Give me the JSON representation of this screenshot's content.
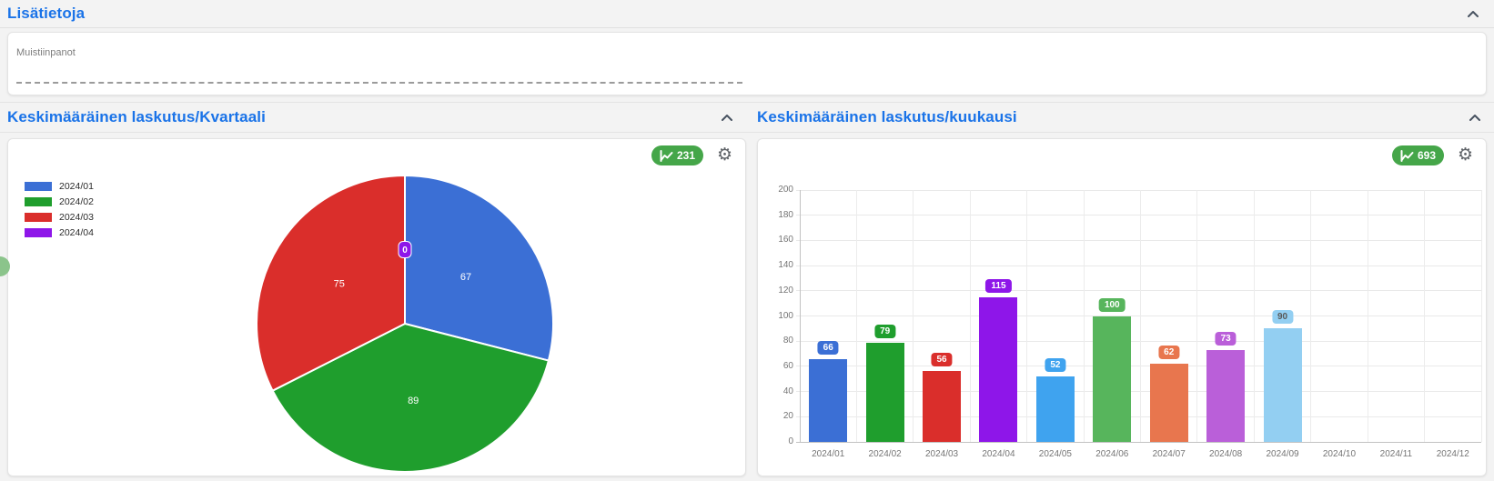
{
  "header": {
    "title": "Lisätietoja"
  },
  "notes": {
    "label": "Muistiinpanot",
    "value": ""
  },
  "panels": {
    "quarterly": {
      "title": "Keskimääräinen laskutus/Kvartaali",
      "badge": "231"
    },
    "monthly": {
      "title": "Keskimääräinen laskutus/kuukausi",
      "badge": "693"
    }
  },
  "icons": {
    "gear_glyph": "⚙",
    "collapse_icon": "chevron-up",
    "badge_icon": "line-chart"
  },
  "colors": {
    "accent_blue": "#1a73e8",
    "badge_green": "#45a649",
    "grid": "#e9e9e9",
    "axis": "#c2c2c2",
    "tick_text": "#757575",
    "drawer_handle": "#8bc48b"
  },
  "chart_data": [
    {
      "id": "quarterly-pie",
      "type": "pie",
      "title": "Keskimääräinen laskutus/Kvartaali",
      "categories": [
        "2024/01",
        "2024/02",
        "2024/03",
        "2024/04"
      ],
      "values": [
        67,
        89,
        75,
        0
      ],
      "colors": [
        "#3b6fd5",
        "#1f9e2d",
        "#da2e2b",
        "#8e16e9"
      ],
      "total": 231,
      "legend_position": "top-left",
      "label_color": "#ffffff",
      "start_angle_deg": 0,
      "direction": "clockwise"
    },
    {
      "id": "monthly-bar",
      "type": "bar",
      "title": "Keskimääräinen laskutus/kuukausi",
      "categories": [
        "2024/01",
        "2024/02",
        "2024/03",
        "2024/04",
        "2024/05",
        "2024/06",
        "2024/07",
        "2024/08",
        "2024/09",
        "2024/10",
        "2024/11",
        "2024/12"
      ],
      "values": [
        66,
        79,
        56,
        115,
        52,
        100,
        62,
        73,
        90,
        0,
        0,
        0
      ],
      "colors": [
        "#3b6fd5",
        "#1f9e2d",
        "#da2e2b",
        "#8e16e9",
        "#3fa3ef",
        "#57b55c",
        "#e8764e",
        "#ba5fd9",
        "#93cff2",
        "",
        "",
        ""
      ],
      "value_label_text_colors": [
        "#ffffff",
        "#ffffff",
        "#ffffff",
        "#ffffff",
        "#ffffff",
        "#ffffff",
        "#ffffff",
        "#ffffff",
        "#595959",
        "",
        "",
        ""
      ],
      "total": 693,
      "ylim": [
        0,
        200
      ],
      "ytick_step": 20,
      "grid": true,
      "legend_position": "none"
    }
  ]
}
